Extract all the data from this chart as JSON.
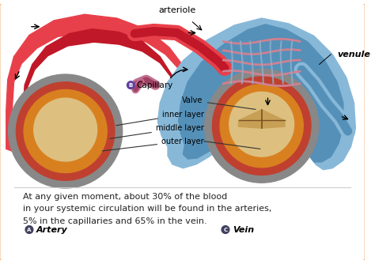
{
  "bg_color": "#ffffff",
  "border_color": "#f4a460",
  "text_bottom": "At any given moment, about 30% of the blood\nin your systemic circulation will be found in the arteries,\n5% in the capillaries and 65% in the vein.",
  "label_arteriole": "arteriole",
  "label_venule": "venule",
  "label_capillary": "Capillary",
  "label_artery": "Artery",
  "label_vein": "Vein",
  "label_valve": "Valve",
  "label_inner": "inner layer",
  "label_middle": "middle layer",
  "label_outer": "outer layer",
  "artery_red": "#e8404a",
  "artery_dark_red": "#c01828",
  "artery_mid_red": "#d02535",
  "vein_blue": "#88b8d8",
  "vein_dark_blue": "#5590b8",
  "vein_mid_blue": "#6aa0c8",
  "outer_gray": "#888888",
  "mid_red_brown": "#c04030",
  "inner_orange": "#d88020",
  "lumen_tan": "#ddc080",
  "valve_tan": "#c8a055",
  "capillary_pink": "#c07090",
  "grid_pink": "#d08090",
  "grid_blue": "#90b0cc"
}
